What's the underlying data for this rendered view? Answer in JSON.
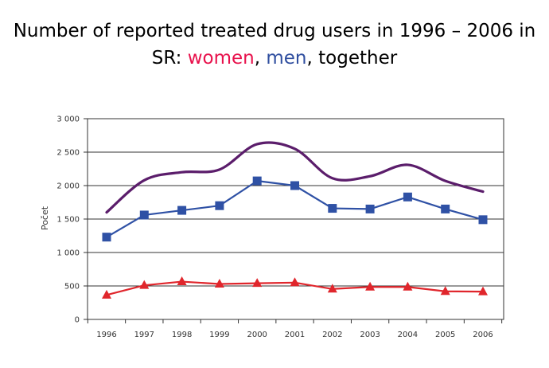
{
  "title": {
    "line1": "Number of reported treated drug users in 1996 – 2006 in",
    "line2_prefix": "SR:  ",
    "women_word": "women",
    "sep1": ", ",
    "men_word": "men",
    "sep2": ", ",
    "together_word": "together"
  },
  "colors": {
    "women": "#e8114c",
    "men": "#2f4e9f",
    "together_line": "#5b1d6b",
    "women_line": "#e0262c",
    "men_line": "#2f51a5",
    "grid": "#333333",
    "axis": "#333333"
  },
  "chart_data": {
    "type": "line",
    "categories": [
      "1996",
      "1997",
      "1998",
      "1999",
      "2000",
      "2001",
      "2002",
      "2003",
      "2004",
      "2005",
      "2006"
    ],
    "xlabel": "",
    "ylabel": "Počet",
    "ylim": [
      0,
      3000
    ],
    "yticks": [
      0,
      500,
      1000,
      1500,
      2000,
      2500,
      3000
    ],
    "ytick_labels": [
      "0",
      "500",
      "1 000",
      "1 500",
      "2 000",
      "2 500",
      "3 000"
    ],
    "grid": true,
    "series": [
      {
        "key": "together",
        "values": [
          1600,
          2080,
          2200,
          2240,
          2620,
          2550,
          2110,
          2140,
          2310,
          2070,
          1910
        ],
        "marker": "none",
        "smooth": true
      },
      {
        "key": "men",
        "values": [
          1230,
          1560,
          1630,
          1700,
          2070,
          2000,
          1660,
          1650,
          1830,
          1650,
          1490
        ],
        "marker": "square"
      },
      {
        "key": "women",
        "values": [
          365,
          510,
          565,
          530,
          540,
          550,
          455,
          485,
          485,
          420,
          415
        ],
        "marker": "triangle"
      }
    ]
  }
}
